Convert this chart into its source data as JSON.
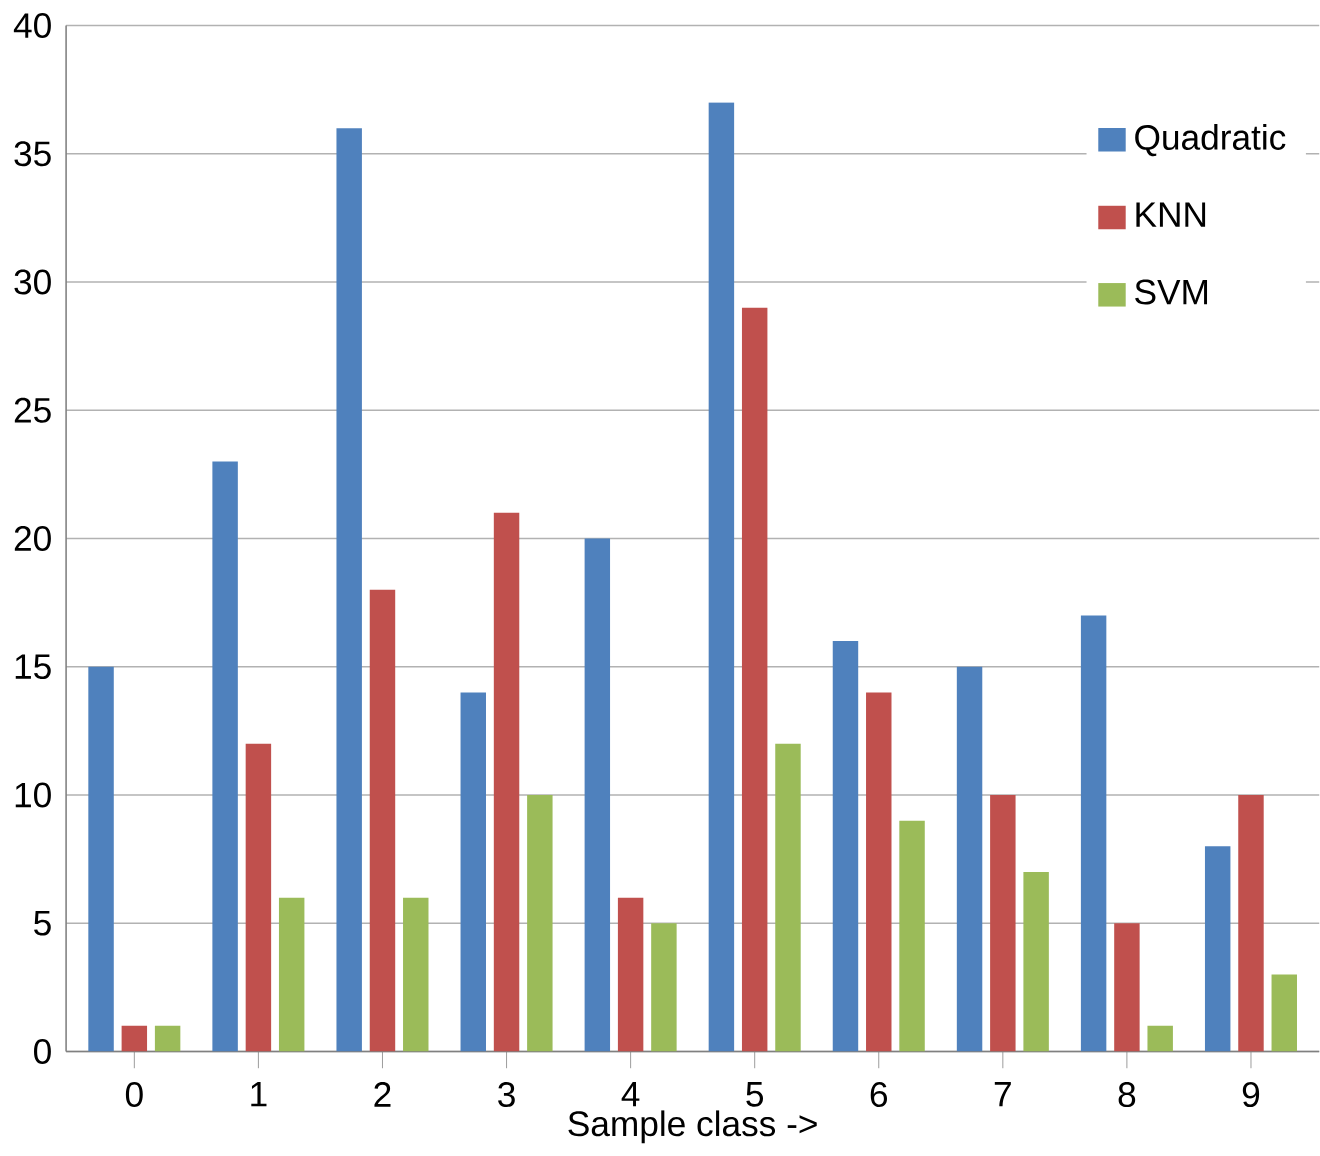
{
  "chart_data": {
    "type": "bar",
    "xlabel": "Sample class ->",
    "categories": [
      "0",
      "1",
      "2",
      "3",
      "4",
      "5",
      "6",
      "7",
      "8",
      "9"
    ],
    "series": [
      {
        "name": "Quadratic",
        "color": "#4f81bd",
        "values": [
          15,
          23,
          36,
          14,
          20,
          37,
          16,
          15,
          17,
          8
        ]
      },
      {
        "name": "KNN",
        "color": "#c0504d",
        "values": [
          1,
          12,
          18,
          21,
          6,
          29,
          14,
          10,
          5,
          10
        ]
      },
      {
        "name": "SVM",
        "color": "#9bbb59",
        "values": [
          1,
          6,
          6,
          10,
          5,
          12,
          9,
          7,
          1,
          3
        ]
      }
    ],
    "ylim": [
      0,
      40
    ],
    "yticks": [
      0,
      5,
      10,
      15,
      20,
      25,
      30,
      35,
      40
    ],
    "grid": "y",
    "legend": "top right"
  }
}
